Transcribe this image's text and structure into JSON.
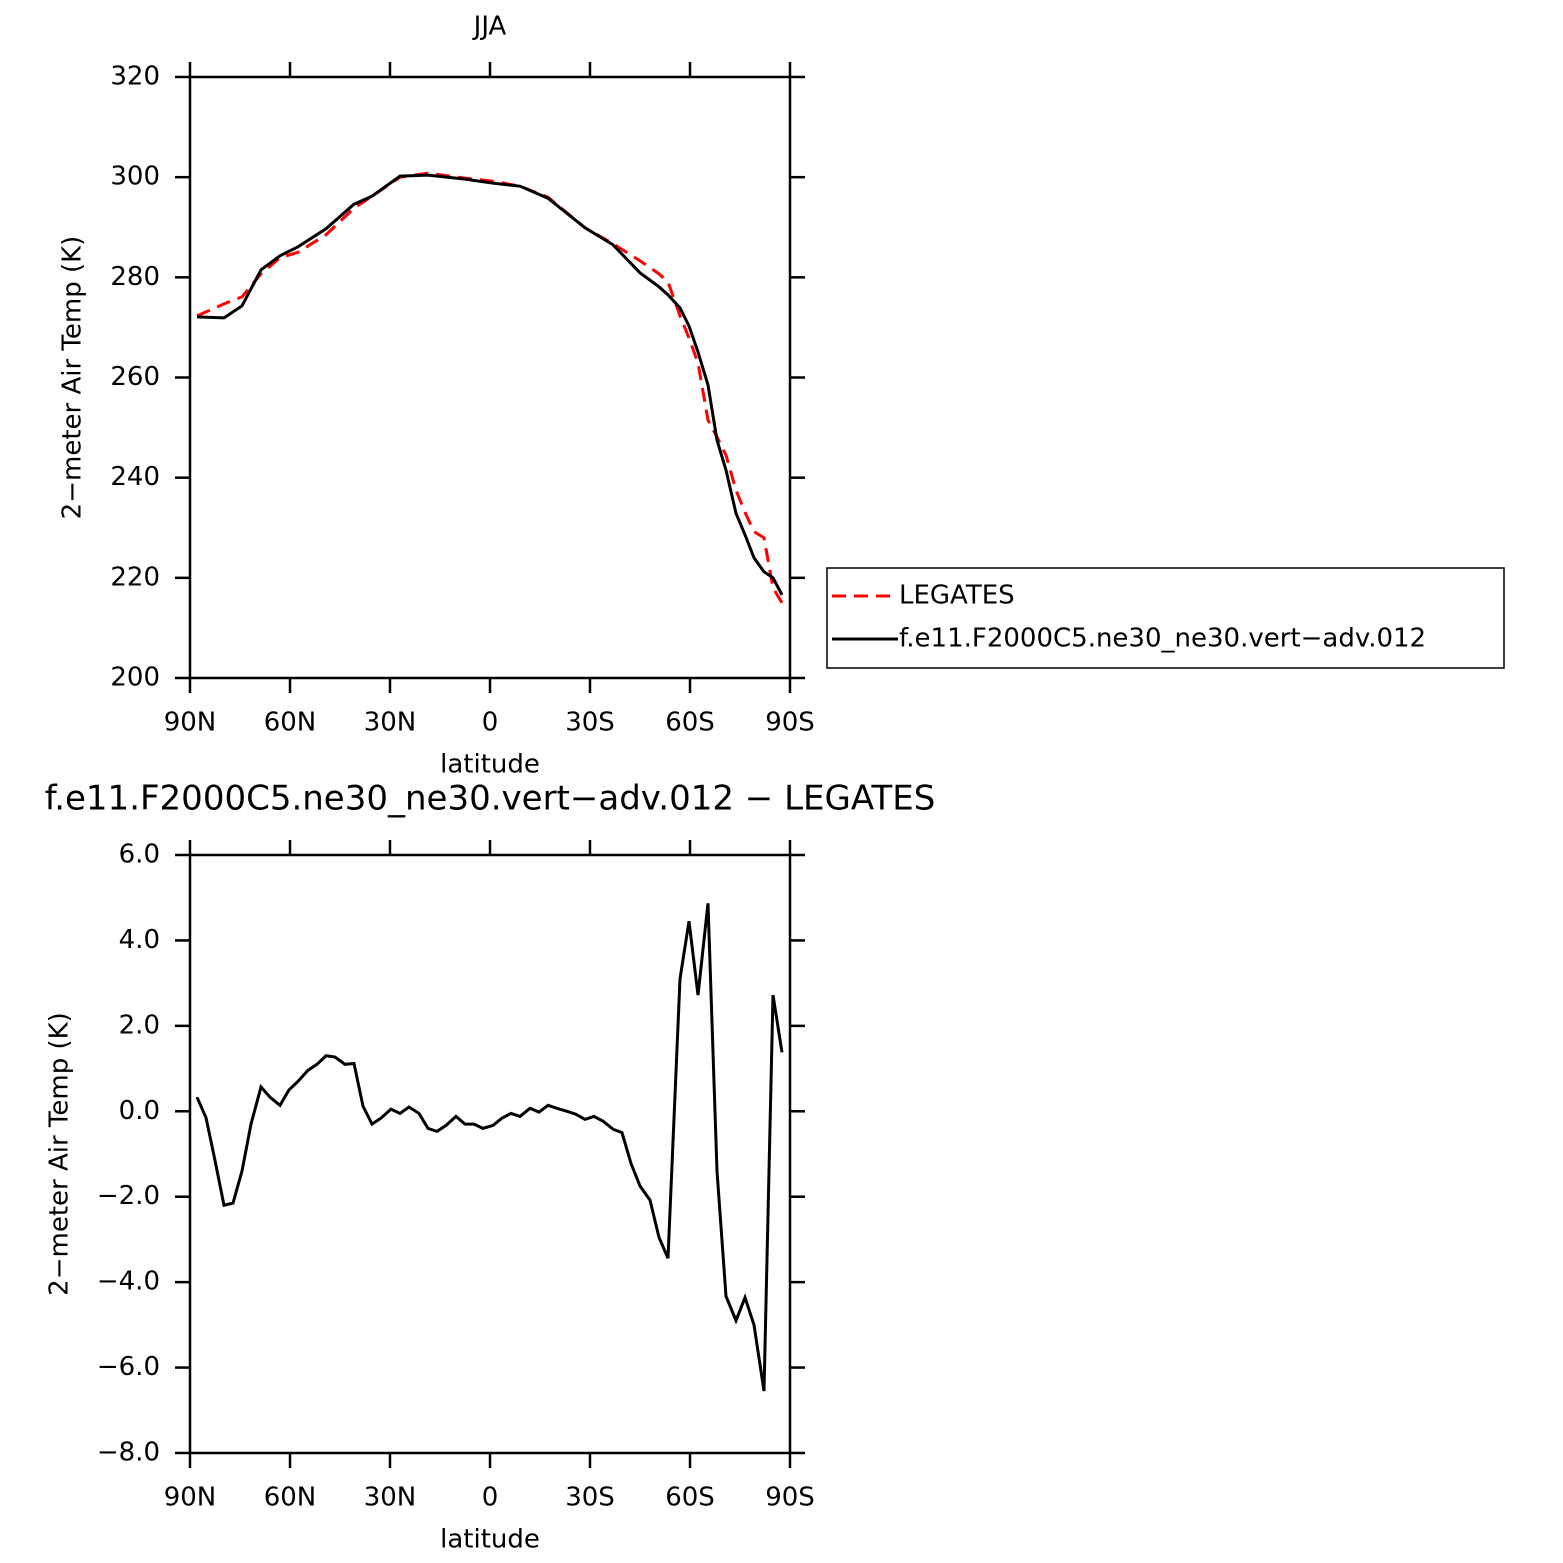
{
  "chart_data": [
    {
      "type": "line",
      "title": "JJA",
      "xlabel": "latitude",
      "ylabel": "2−meter Air Temp (K)",
      "x": [
        87.9,
        79.8,
        74.4,
        68.7,
        63.0,
        57.6,
        49.2,
        40.8,
        35.4,
        27.0,
        18.6,
        7.5,
        -0.9,
        -9.0,
        -17.4,
        -28.5,
        -36.9,
        -45.0,
        -50.7,
        -53.4,
        -57.0,
        -59.7,
        -62.4,
        -65.4,
        -68.1,
        -70.8,
        -73.8,
        -76.5,
        -79.2,
        -82.2,
        -84.9,
        -87.6
      ],
      "series": [
        {
          "name": "LEGATES",
          "color": "#ff0000",
          "style": "dashed",
          "values": [
            272.3,
            274.7,
            276.1,
            280.7,
            283.9,
            285.0,
            288.5,
            293.8,
            296.2,
            300.0,
            300.8,
            299.8,
            299.2,
            298.2,
            296.0,
            289.9,
            286.7,
            283.3,
            280.7,
            279.1,
            272.3,
            267.9,
            262.9,
            251.5,
            248.1,
            244.5,
            237.5,
            233.1,
            229.2,
            228.0,
            218.0,
            215.0
          ]
        },
        {
          "name": "f.e11.F2000C5.ne30_ne30.vert−adv.012",
          "color": "#000000",
          "style": "solid",
          "values": [
            272.1,
            271.9,
            274.3,
            281.5,
            284.3,
            286.1,
            289.7,
            294.6,
            296.2,
            300.2,
            300.4,
            299.6,
            298.8,
            298.2,
            295.8,
            289.9,
            286.5,
            280.9,
            278.1,
            276.5,
            273.9,
            270.3,
            265.1,
            258.5,
            247.5,
            241.5,
            232.9,
            228.6,
            224.0,
            221.2,
            220.0,
            216.6
          ]
        }
      ],
      "xlim": [
        90,
        -90
      ],
      "xticks": [
        {
          "value": 90,
          "label": "90N"
        },
        {
          "value": 60,
          "label": "60N"
        },
        {
          "value": 30,
          "label": "30N"
        },
        0,
        {
          "value": -30,
          "label": "30S"
        },
        {
          "value": -60,
          "label": "60S"
        },
        {
          "value": -90,
          "label": "90S"
        }
      ],
      "ylim": [
        200,
        320
      ],
      "yticks": [
        200,
        220,
        240,
        260,
        280,
        300,
        320
      ],
      "legend": "right"
    },
    {
      "type": "line",
      "title": "f.e11.F2000C5.ne30_ne30.vert−adv.012 − LEGATES",
      "xlabel": "latitude",
      "ylabel": "2−meter Air Temp (K)",
      "x": [
        87.9,
        85.2,
        82.5,
        79.8,
        77.1,
        74.4,
        71.7,
        68.7,
        66.0,
        63.0,
        60.3,
        57.6,
        54.6,
        51.9,
        49.2,
        46.5,
        43.5,
        40.8,
        38.1,
        35.4,
        32.7,
        29.7,
        27.0,
        24.3,
        21.3,
        18.6,
        15.9,
        13.2,
        10.2,
        7.5,
        4.8,
        2.1,
        -0.9,
        -3.6,
        -6.3,
        -9.0,
        -12.0,
        -14.7,
        -17.4,
        -20.1,
        -23.1,
        -25.8,
        -28.5,
        -31.2,
        -33.9,
        -36.9,
        -39.6,
        -42.3,
        -45.0,
        -48.0,
        -50.7,
        -53.4,
        -57.0,
        -59.7,
        -62.4,
        -65.4,
        -68.1,
        -70.8,
        -73.8,
        -76.5,
        -79.2,
        -82.2,
        -84.9,
        -87.6
      ],
      "values": [
        0.33,
        -0.15,
        -1.15,
        -2.2,
        -2.15,
        -1.4,
        -0.3,
        0.57,
        0.33,
        0.14,
        0.5,
        0.7,
        0.96,
        1.1,
        1.3,
        1.27,
        1.1,
        1.12,
        0.12,
        -0.3,
        -0.16,
        0.05,
        -0.05,
        0.1,
        -0.05,
        -0.4,
        -0.47,
        -0.33,
        -0.12,
        -0.3,
        -0.3,
        -0.4,
        -0.33,
        -0.16,
        -0.05,
        -0.12,
        0.07,
        -0.02,
        0.14,
        0.07,
        0.0,
        -0.07,
        -0.19,
        -0.12,
        -0.23,
        -0.42,
        -0.5,
        -1.22,
        -1.75,
        -2.08,
        -2.95,
        -3.44,
        3.1,
        4.45,
        2.72,
        4.87,
        -1.4,
        -4.33,
        -4.9,
        -4.36,
        -5.0,
        -6.55,
        2.72,
        1.38
      ],
      "color": "#000000",
      "xlim": [
        90,
        -90
      ],
      "xticks": [
        {
          "value": 90,
          "label": "90N"
        },
        {
          "value": 60,
          "label": "60N"
        },
        {
          "value": 30,
          "label": "30N"
        },
        0,
        {
          "value": -30,
          "label": "30S"
        },
        {
          "value": -60,
          "label": "60S"
        },
        {
          "value": -90,
          "label": "90S"
        }
      ],
      "ylim": [
        -8,
        6
      ],
      "yticks": [
        {
          "value": -8,
          "label": "−8.0"
        },
        {
          "value": -6,
          "label": "−6.0"
        },
        {
          "value": -4,
          "label": "−4.0"
        },
        {
          "value": -2,
          "label": "−2.0"
        },
        {
          "value": 0,
          "label": "0.0"
        },
        {
          "value": 2,
          "label": "2.0"
        },
        {
          "value": 4,
          "label": "4.0"
        },
        {
          "value": 6,
          "label": "6.0"
        }
      ]
    }
  ]
}
